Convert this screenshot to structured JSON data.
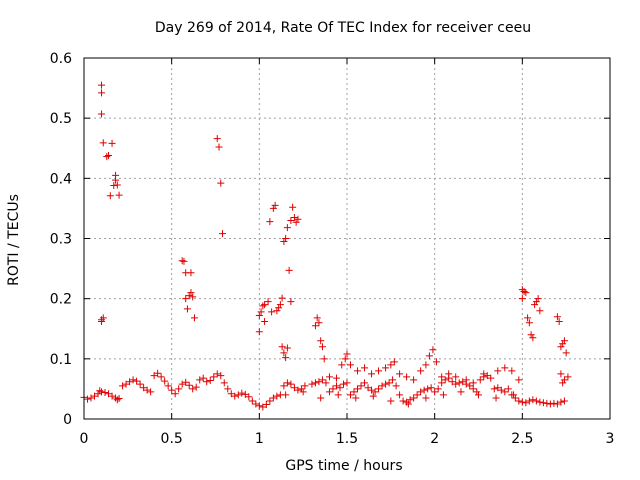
{
  "chart_data": {
    "type": "scatter",
    "title": "Day 269 of 2014, Rate Of TEC Index for receiver ceeu",
    "xlabel": "GPS time / hours",
    "ylabel": "ROTI / TECUs",
    "xlim": [
      0,
      3
    ],
    "ylim": [
      0,
      0.6
    ],
    "grid": true,
    "marker": "+",
    "marker_color": "#e00000",
    "xticks": [
      {
        "value": 0,
        "label": "0"
      },
      {
        "value": 0.5,
        "label": "0.5"
      },
      {
        "value": 1,
        "label": "1"
      },
      {
        "value": 1.5,
        "label": "1.5"
      },
      {
        "value": 2,
        "label": "2"
      },
      {
        "value": 2.5,
        "label": "2.5"
      },
      {
        "value": 3,
        "label": "3"
      }
    ],
    "yticks": [
      {
        "value": 0,
        "label": "0"
      },
      {
        "value": 0.1,
        "label": "0.1"
      },
      {
        "value": 0.2,
        "label": "0.2"
      },
      {
        "value": 0.3,
        "label": "0.3"
      },
      {
        "value": 0.4,
        "label": "0.4"
      },
      {
        "value": 0.5,
        "label": "0.5"
      },
      {
        "value": 0.6,
        "label": "0.6"
      }
    ],
    "series": [
      {
        "name": "ROTI",
        "points": [
          [
            0.0,
            0.036
          ],
          [
            0.02,
            0.033
          ],
          [
            0.04,
            0.035
          ],
          [
            0.06,
            0.038
          ],
          [
            0.08,
            0.042
          ],
          [
            0.09,
            0.047
          ],
          [
            0.1,
            0.045
          ],
          [
            0.12,
            0.044
          ],
          [
            0.14,
            0.042
          ],
          [
            0.16,
            0.038
          ],
          [
            0.18,
            0.035
          ],
          [
            0.19,
            0.032
          ],
          [
            0.2,
            0.034
          ],
          [
            0.22,
            0.055
          ],
          [
            0.24,
            0.058
          ],
          [
            0.26,
            0.062
          ],
          [
            0.28,
            0.065
          ],
          [
            0.3,
            0.063
          ],
          [
            0.32,
            0.058
          ],
          [
            0.34,
            0.052
          ],
          [
            0.36,
            0.048
          ],
          [
            0.38,
            0.045
          ],
          [
            0.4,
            0.072
          ],
          [
            0.42,
            0.076
          ],
          [
            0.44,
            0.07
          ],
          [
            0.46,
            0.063
          ],
          [
            0.48,
            0.055
          ],
          [
            0.5,
            0.048
          ],
          [
            0.52,
            0.042
          ],
          [
            0.54,
            0.05
          ],
          [
            0.56,
            0.058
          ],
          [
            0.58,
            0.061
          ],
          [
            0.6,
            0.056
          ],
          [
            0.62,
            0.05
          ],
          [
            0.64,
            0.053
          ],
          [
            0.66,
            0.065
          ],
          [
            0.68,
            0.068
          ],
          [
            0.7,
            0.062
          ],
          [
            0.72,
            0.064
          ],
          [
            0.74,
            0.07
          ],
          [
            0.76,
            0.075
          ],
          [
            0.78,
            0.072
          ],
          [
            0.8,
            0.06
          ],
          [
            0.82,
            0.05
          ],
          [
            0.84,
            0.042
          ],
          [
            0.86,
            0.038
          ],
          [
            0.88,
            0.04
          ],
          [
            0.9,
            0.043
          ],
          [
            0.92,
            0.041
          ],
          [
            0.94,
            0.037
          ],
          [
            0.96,
            0.03
          ],
          [
            0.98,
            0.025
          ],
          [
            1.0,
            0.022
          ],
          [
            1.02,
            0.02
          ],
          [
            1.04,
            0.024
          ],
          [
            1.06,
            0.03
          ],
          [
            1.08,
            0.035
          ],
          [
            1.1,
            0.038
          ],
          [
            1.12,
            0.04
          ],
          [
            1.14,
            0.055
          ],
          [
            1.16,
            0.06
          ],
          [
            1.18,
            0.058
          ],
          [
            1.2,
            0.052
          ],
          [
            1.22,
            0.048
          ],
          [
            1.24,
            0.05
          ],
          [
            1.26,
            0.055
          ],
          [
            1.3,
            0.058
          ],
          [
            1.32,
            0.06
          ],
          [
            1.34,
            0.062
          ],
          [
            1.36,
            0.065
          ],
          [
            1.38,
            0.06
          ],
          [
            1.4,
            0.045
          ],
          [
            1.42,
            0.05
          ],
          [
            1.44,
            0.055
          ],
          [
            1.46,
            0.052
          ],
          [
            1.48,
            0.058
          ],
          [
            1.5,
            0.06
          ],
          [
            1.52,
            0.04
          ],
          [
            1.54,
            0.045
          ],
          [
            1.56,
            0.05
          ],
          [
            1.58,
            0.055
          ],
          [
            1.6,
            0.06
          ],
          [
            1.62,
            0.052
          ],
          [
            1.64,
            0.048
          ],
          [
            1.66,
            0.045
          ],
          [
            1.68,
            0.05
          ],
          [
            1.7,
            0.055
          ],
          [
            1.72,
            0.058
          ],
          [
            1.74,
            0.06
          ],
          [
            1.76,
            0.065
          ],
          [
            1.78,
            0.055
          ],
          [
            1.8,
            0.04
          ],
          [
            1.82,
            0.03
          ],
          [
            1.84,
            0.028
          ],
          [
            1.86,
            0.032
          ],
          [
            1.88,
            0.035
          ],
          [
            1.9,
            0.04
          ],
          [
            1.92,
            0.045
          ],
          [
            1.94,
            0.048
          ],
          [
            1.96,
            0.05
          ],
          [
            1.98,
            0.052
          ],
          [
            2.0,
            0.045
          ],
          [
            2.02,
            0.05
          ],
          [
            2.04,
            0.06
          ],
          [
            2.06,
            0.065
          ],
          [
            2.08,
            0.068
          ],
          [
            2.1,
            0.062
          ],
          [
            2.12,
            0.058
          ],
          [
            2.14,
            0.06
          ],
          [
            2.16,
            0.062
          ],
          [
            2.18,
            0.058
          ],
          [
            2.2,
            0.055
          ],
          [
            2.22,
            0.05
          ],
          [
            2.24,
            0.045
          ],
          [
            2.26,
            0.065
          ],
          [
            2.28,
            0.07
          ],
          [
            2.3,
            0.072
          ],
          [
            2.32,
            0.068
          ],
          [
            2.34,
            0.05
          ],
          [
            2.36,
            0.052
          ],
          [
            2.38,
            0.048
          ],
          [
            2.4,
            0.045
          ],
          [
            2.42,
            0.05
          ],
          [
            2.44,
            0.04
          ],
          [
            2.46,
            0.035
          ],
          [
            2.48,
            0.03
          ],
          [
            2.5,
            0.028
          ],
          [
            2.52,
            0.027
          ],
          [
            2.54,
            0.03
          ],
          [
            2.56,
            0.032
          ],
          [
            2.58,
            0.03
          ],
          [
            2.6,
            0.028
          ],
          [
            2.62,
            0.027
          ],
          [
            2.64,
            0.026
          ],
          [
            2.66,
            0.025
          ],
          [
            2.68,
            0.026
          ],
          [
            2.7,
            0.025
          ],
          [
            2.72,
            0.028
          ],
          [
            2.74,
            0.03
          ],
          [
            1.15,
            0.04
          ],
          [
            1.25,
            0.045
          ],
          [
            1.35,
            0.035
          ],
          [
            1.45,
            0.04
          ],
          [
            1.55,
            0.035
          ],
          [
            1.65,
            0.038
          ],
          [
            1.75,
            0.03
          ],
          [
            1.85,
            0.025
          ],
          [
            1.95,
            0.035
          ],
          [
            2.05,
            0.04
          ],
          [
            2.15,
            0.045
          ],
          [
            2.25,
            0.04
          ],
          [
            2.35,
            0.035
          ],
          [
            2.45,
            0.04
          ],
          [
            1.4,
            0.07
          ],
          [
            1.44,
            0.068
          ],
          [
            1.47,
            0.09
          ],
          [
            1.49,
            0.1
          ],
          [
            1.5,
            0.108
          ],
          [
            1.52,
            0.09
          ],
          [
            1.56,
            0.08
          ],
          [
            1.6,
            0.085
          ],
          [
            1.64,
            0.075
          ],
          [
            1.68,
            0.08
          ],
          [
            1.72,
            0.085
          ],
          [
            1.75,
            0.09
          ],
          [
            1.77,
            0.095
          ],
          [
            1.8,
            0.075
          ],
          [
            1.84,
            0.07
          ],
          [
            1.88,
            0.065
          ],
          [
            1.92,
            0.08
          ],
          [
            1.95,
            0.09
          ],
          [
            1.97,
            0.105
          ],
          [
            1.99,
            0.115
          ],
          [
            2.01,
            0.095
          ],
          [
            2.04,
            0.07
          ],
          [
            2.08,
            0.075
          ],
          [
            2.12,
            0.07
          ],
          [
            2.18,
            0.065
          ],
          [
            2.22,
            0.06
          ],
          [
            2.28,
            0.075
          ],
          [
            2.36,
            0.08
          ],
          [
            2.4,
            0.085
          ],
          [
            2.44,
            0.08
          ],
          [
            2.48,
            0.065
          ],
          [
            0.1,
            0.555
          ],
          [
            0.1,
            0.542
          ],
          [
            0.1,
            0.507
          ],
          [
            0.11,
            0.459
          ],
          [
            0.13,
            0.436
          ],
          [
            0.14,
            0.438
          ],
          [
            0.16,
            0.458
          ],
          [
            0.15,
            0.371
          ],
          [
            0.17,
            0.388
          ],
          [
            0.18,
            0.397
          ],
          [
            0.18,
            0.405
          ],
          [
            0.19,
            0.389
          ],
          [
            0.2,
            0.372
          ],
          [
            0.1,
            0.165
          ],
          [
            0.11,
            0.168
          ],
          [
            0.1,
            0.162
          ],
          [
            0.56,
            0.263
          ],
          [
            0.57,
            0.262
          ],
          [
            0.58,
            0.243
          ],
          [
            0.61,
            0.243
          ],
          [
            0.58,
            0.2
          ],
          [
            0.6,
            0.205
          ],
          [
            0.61,
            0.21
          ],
          [
            0.62,
            0.203
          ],
          [
            0.59,
            0.183
          ],
          [
            0.63,
            0.168
          ],
          [
            0.76,
            0.466
          ],
          [
            0.77,
            0.452
          ],
          [
            0.78,
            0.392
          ],
          [
            0.79,
            0.308
          ],
          [
            1.0,
            0.172
          ],
          [
            1.01,
            0.178
          ],
          [
            1.02,
            0.188
          ],
          [
            1.03,
            0.19
          ],
          [
            1.05,
            0.195
          ],
          [
            1.06,
            0.328
          ],
          [
            1.08,
            0.35
          ],
          [
            1.09,
            0.355
          ],
          [
            1.1,
            0.18
          ],
          [
            1.11,
            0.185
          ],
          [
            1.12,
            0.19
          ],
          [
            1.13,
            0.201
          ],
          [
            1.14,
            0.295
          ],
          [
            1.15,
            0.3
          ],
          [
            1.16,
            0.318
          ],
          [
            1.17,
            0.247
          ],
          [
            1.18,
            0.195
          ],
          [
            1.18,
            0.33
          ],
          [
            1.19,
            0.352
          ],
          [
            1.2,
            0.335
          ],
          [
            1.21,
            0.327
          ],
          [
            1.22,
            0.332
          ],
          [
            1.0,
            0.145
          ],
          [
            1.03,
            0.162
          ],
          [
            1.07,
            0.178
          ],
          [
            1.13,
            0.12
          ],
          [
            1.14,
            0.11
          ],
          [
            1.15,
            0.102
          ],
          [
            1.16,
            0.118
          ],
          [
            1.32,
            0.155
          ],
          [
            1.33,
            0.168
          ],
          [
            1.34,
            0.16
          ],
          [
            1.35,
            0.13
          ],
          [
            1.36,
            0.12
          ],
          [
            1.37,
            0.1
          ],
          [
            2.5,
            0.215
          ],
          [
            2.51,
            0.212
          ],
          [
            2.52,
            0.21
          ],
          [
            2.5,
            0.2
          ],
          [
            2.53,
            0.168
          ],
          [
            2.54,
            0.16
          ],
          [
            2.55,
            0.14
          ],
          [
            2.56,
            0.135
          ],
          [
            2.57,
            0.19
          ],
          [
            2.58,
            0.195
          ],
          [
            2.59,
            0.2
          ],
          [
            2.6,
            0.18
          ],
          [
            2.7,
            0.17
          ],
          [
            2.71,
            0.162
          ],
          [
            2.72,
            0.12
          ],
          [
            2.73,
            0.125
          ],
          [
            2.74,
            0.13
          ],
          [
            2.75,
            0.11
          ],
          [
            2.72,
            0.075
          ],
          [
            2.73,
            0.06
          ],
          [
            2.74,
            0.065
          ],
          [
            2.76,
            0.07
          ]
        ]
      }
    ]
  }
}
